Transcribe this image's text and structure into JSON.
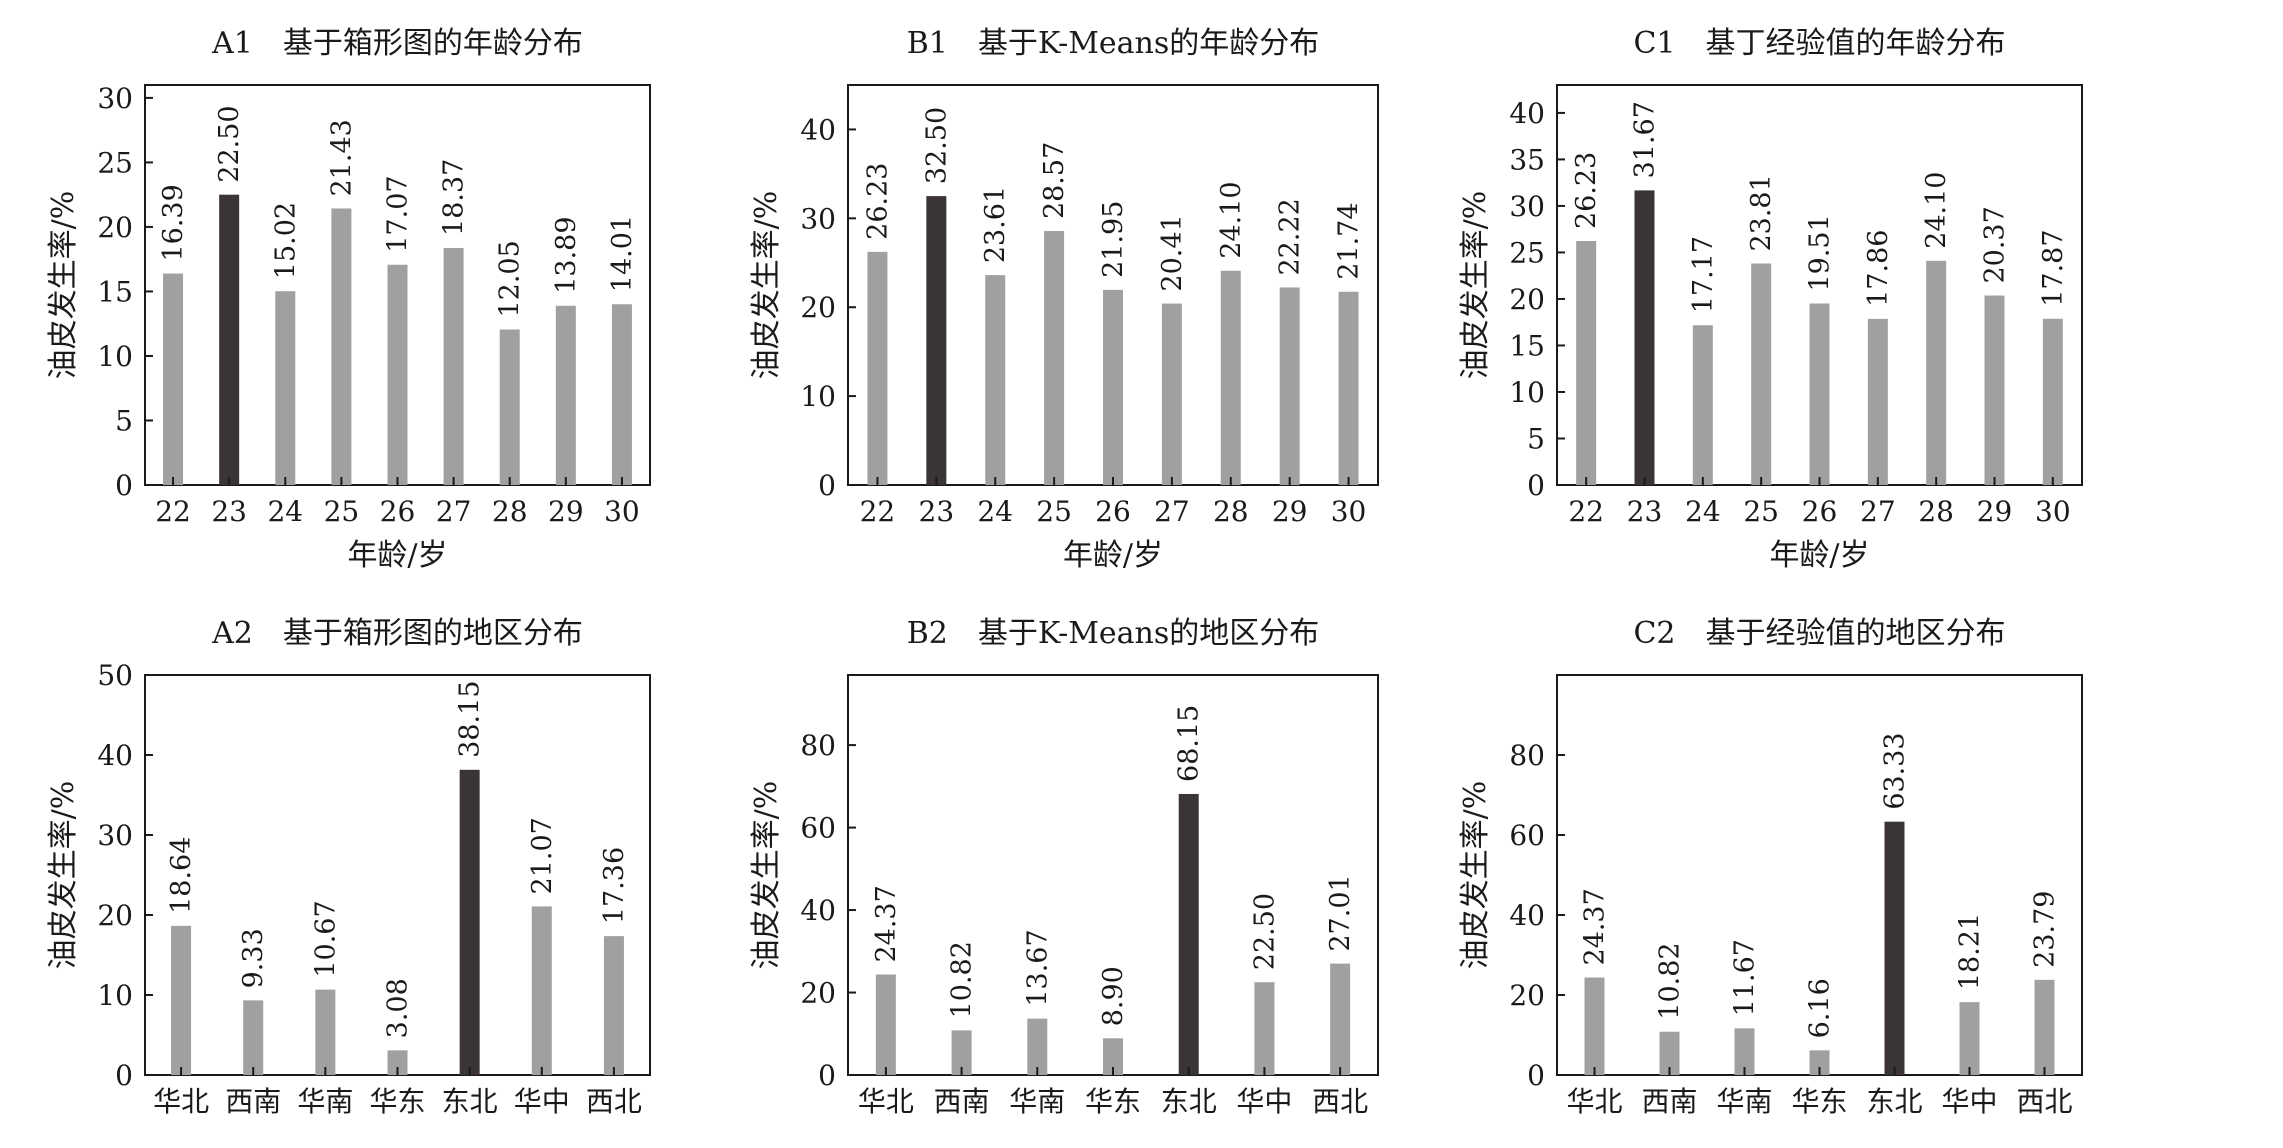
{
  "colors": {
    "bar": "#a0a0a0",
    "highlight": "#3a3436",
    "axis": "#1a1a1a"
  },
  "chart_data": [
    {
      "type": "bar",
      "title": "A1　基于箱形图的年龄分布",
      "xlabel": "年龄/岁",
      "ylabel": "油皮发生率/%",
      "categories": [
        "22",
        "23",
        "24",
        "25",
        "26",
        "27",
        "28",
        "29",
        "30"
      ],
      "values": [
        16.39,
        22.5,
        15.02,
        21.43,
        17.07,
        18.37,
        12.05,
        13.89,
        14.01
      ],
      "value_labels": [
        "16.39",
        "22.50",
        "15.02",
        "21.43",
        "17.07",
        "18.37",
        "12.05",
        "13.89",
        "14.01"
      ],
      "highlight_index": 1,
      "ylim": [
        0,
        31
      ],
      "yticks": [
        0,
        5,
        10,
        15,
        20,
        25,
        30
      ],
      "grid": false
    },
    {
      "type": "bar",
      "title": "B1　基于K-Means的年龄分布",
      "xlabel": "年龄/岁",
      "ylabel": "油皮发生率/%",
      "categories": [
        "22",
        "23",
        "24",
        "25",
        "26",
        "27",
        "28",
        "29",
        "30"
      ],
      "values": [
        26.23,
        32.5,
        23.61,
        28.57,
        21.95,
        20.41,
        24.1,
        22.22,
        21.74
      ],
      "value_labels": [
        "26.23",
        "32.50",
        "23.61",
        "28.57",
        "21.95",
        "20.41",
        "24.10",
        "22.22",
        "21.74"
      ],
      "highlight_index": 1,
      "ylim": [
        0,
        45
      ],
      "yticks": [
        0,
        10,
        20,
        30,
        40
      ],
      "grid": false
    },
    {
      "type": "bar",
      "title": "C1　基丁经验值的年龄分布",
      "xlabel": "年龄/岁",
      "ylabel": "油皮发生率/%",
      "categories": [
        "22",
        "23",
        "24",
        "25",
        "26",
        "27",
        "28",
        "29",
        "30"
      ],
      "values": [
        26.23,
        31.67,
        17.17,
        23.81,
        19.51,
        17.86,
        24.1,
        20.37,
        17.87
      ],
      "value_labels": [
        "26.23",
        "31.67",
        "17.17",
        "23.81",
        "19.51",
        "17.86",
        "24.10",
        "20.37",
        "17.87"
      ],
      "highlight_index": 1,
      "ylim": [
        0,
        43
      ],
      "yticks": [
        0,
        5,
        10,
        15,
        20,
        25,
        30,
        35,
        40
      ],
      "grid": false
    },
    {
      "type": "bar",
      "title": "A2　基于箱形图的地区分布",
      "xlabel": "",
      "ylabel": "油皮发生率/%",
      "categories": [
        "华北",
        "西南",
        "华南",
        "华东",
        "东北",
        "华中",
        "西北"
      ],
      "values": [
        18.64,
        9.33,
        10.67,
        3.08,
        38.15,
        21.07,
        17.36
      ],
      "value_labels": [
        "18.64",
        "9.33",
        "10.67",
        "3.08",
        "38.15",
        "21.07",
        "17.36"
      ],
      "highlight_index": 4,
      "ylim": [
        0,
        50
      ],
      "yticks": [
        0,
        10,
        20,
        30,
        40,
        50
      ],
      "grid": false
    },
    {
      "type": "bar",
      "title": "B2　基于K-Means的地区分布",
      "xlabel": "",
      "ylabel": "油皮发生率/%",
      "categories": [
        "华北",
        "西南",
        "华南",
        "华东",
        "东北",
        "华中",
        "西北"
      ],
      "values": [
        24.37,
        10.82,
        13.67,
        8.9,
        68.15,
        22.5,
        27.01
      ],
      "value_labels": [
        "24.37",
        "10.82",
        "13.67",
        "8.90",
        "68.15",
        "22.50",
        "27.01"
      ],
      "highlight_index": 4,
      "ylim": [
        0,
        97
      ],
      "yticks": [
        0,
        20,
        40,
        60,
        80
      ],
      "grid": false
    },
    {
      "type": "bar",
      "title": "C2　基于经验值的地区分布",
      "xlabel": "",
      "ylabel": "油皮发生率/%",
      "categories": [
        "华北",
        "西南",
        "华南",
        "华东",
        "东北",
        "华中",
        "西北"
      ],
      "values": [
        24.37,
        10.82,
        11.67,
        6.16,
        63.33,
        18.21,
        23.79
      ],
      "value_labels": [
        "24.37",
        "10.82",
        "11.67",
        "6.16",
        "63.33",
        "18.21",
        "23.79"
      ],
      "highlight_index": 4,
      "ylim": [
        0,
        100
      ],
      "yticks": [
        0,
        20,
        40,
        60,
        80
      ],
      "grid": false
    }
  ]
}
